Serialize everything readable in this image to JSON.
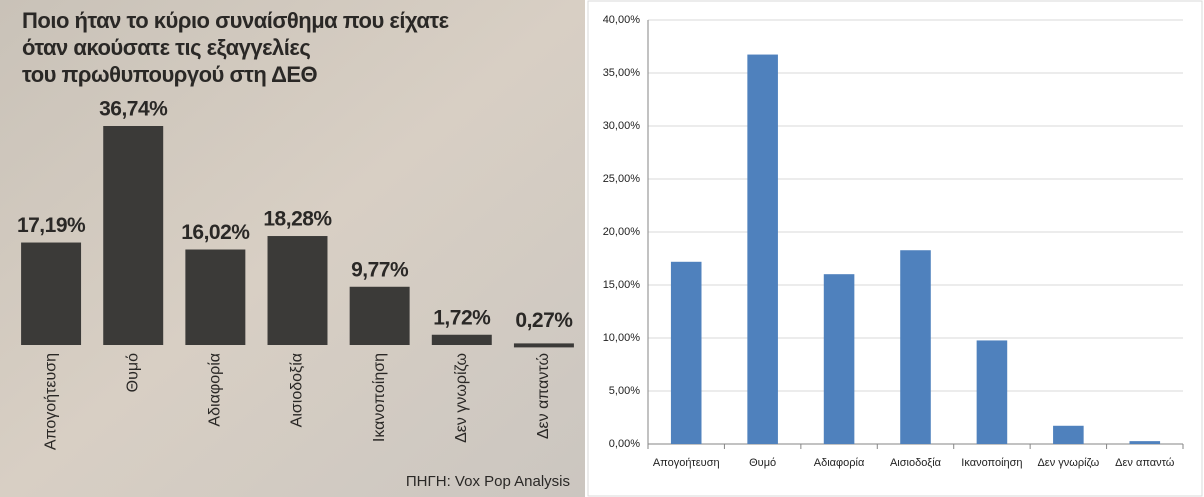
{
  "chart_data": [
    {
      "type": "bar",
      "title": [
        "Ποιο ήταν το κύριο συναίσθημα που είχατε",
        "όταν ακούσατε τις εξαγγελίες",
        "του πρωθυπουργού στη ΔΕΘ"
      ],
      "categories": [
        "Απογοήτευση",
        "Θυμό",
        "Αδιαφορία",
        "Αισιοδοξία",
        "Ικανοποίηση",
        "Δεν γνωρίζω",
        "Δεν απαντώ"
      ],
      "values": [
        17.19,
        36.74,
        16.02,
        18.28,
        9.77,
        1.72,
        0.27
      ],
      "value_labels": [
        "17,19%",
        "36,74%",
        "16,02%",
        "18,28%",
        "9,77%",
        "1,72%",
        "0,27%"
      ],
      "color": "#3b3a38",
      "source": "ΠΗΓΗ: Vox Pop Analysis"
    },
    {
      "type": "bar",
      "categories": [
        "Απογοήτευση",
        "Θυμό",
        "Αδιαφορία",
        "Αισιοδοξία",
        "Ικανοποίηση",
        "Δεν γνωρίζω",
        "Δεν απαντώ"
      ],
      "values": [
        17.19,
        36.74,
        16.02,
        18.28,
        9.77,
        1.72,
        0.27
      ],
      "color": "#4f81bd",
      "ylim": [
        0,
        40
      ],
      "yticks": [
        {
          "value": 0,
          "label": "0,00%"
        },
        {
          "value": 5,
          "label": "5,00%"
        },
        {
          "value": 10,
          "label": "10,00%"
        },
        {
          "value": 15,
          "label": "15,00%"
        },
        {
          "value": 20,
          "label": "20,00%"
        },
        {
          "value": 25,
          "label": "25,00%"
        },
        {
          "value": 30,
          "label": "30,00%"
        },
        {
          "value": 35,
          "label": "35,00%"
        },
        {
          "value": 40,
          "label": "40,00%"
        }
      ],
      "grid": true
    }
  ]
}
